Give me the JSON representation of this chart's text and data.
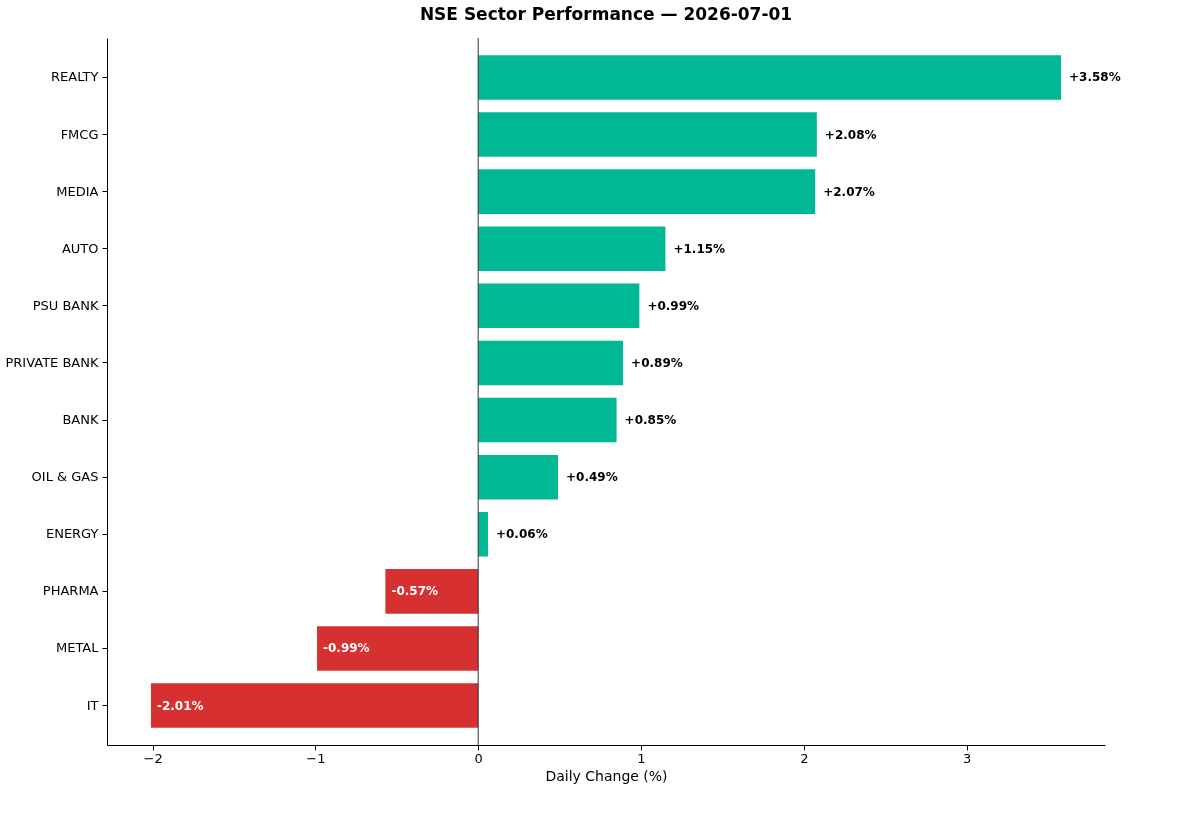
{
  "chart_data": {
    "type": "bar",
    "orientation": "horizontal",
    "title": "NSE Sector Performance — 2026-07-01",
    "xlabel": "Daily Change (%)",
    "categories": [
      "REALTY",
      "FMCG",
      "MEDIA",
      "AUTO",
      "PSU BANK",
      "PRIVATE BANK",
      "BANK",
      "OIL & GAS",
      "ENERGY",
      "PHARMA",
      "METAL",
      "IT"
    ],
    "values": [
      3.58,
      2.08,
      2.07,
      1.15,
      0.99,
      0.89,
      0.85,
      0.49,
      0.06,
      -0.57,
      -0.99,
      -2.01
    ],
    "colors": [
      "#00b894",
      "#00b894",
      "#00b894",
      "#00b894",
      "#00b894",
      "#00b894",
      "#00b894",
      "#00b894",
      "#00b894",
      "#d63031",
      "#d63031",
      "#d63031"
    ],
    "value_labels": [
      "+3.58%",
      "+2.08%",
      "+2.07%",
      "+1.15%",
      "+0.99%",
      "+0.89%",
      "+0.85%",
      "+0.49%",
      "+0.06%",
      "-0.57%",
      "-0.99%",
      "-2.01%"
    ],
    "xlim": [
      -2.28,
      3.85
    ],
    "xticks": [
      {
        "value": -2,
        "label": "−2"
      },
      {
        "value": -1,
        "label": "−1"
      },
      0,
      1,
      2,
      3
    ],
    "ref_lines": [
      {
        "axis": "x",
        "value": 0,
        "color": "#333333"
      }
    ],
    "grid": false
  }
}
